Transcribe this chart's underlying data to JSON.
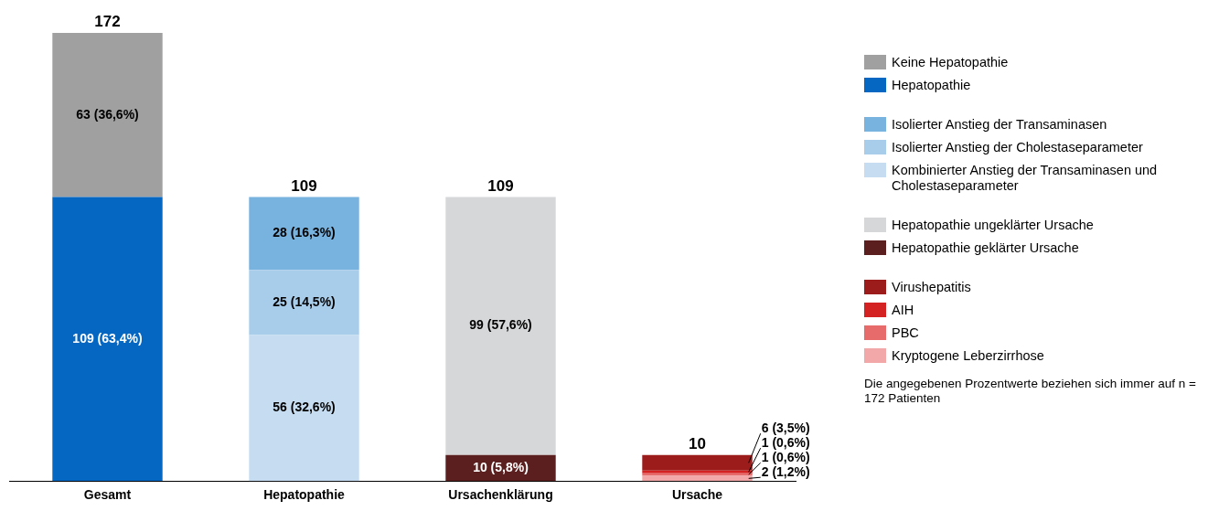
{
  "chart_data": {
    "type": "bar",
    "stacked": true,
    "categories": [
      "Gesamt",
      "Hepatopathie",
      "Ursachenklärung",
      "Ursache"
    ],
    "series": [
      {
        "name": "Hepatopathie",
        "color": "#0567c1",
        "values": [
          109,
          null,
          null,
          null
        ],
        "value_labels": [
          "109 (63,4%)",
          null,
          null,
          null
        ]
      },
      {
        "name": "Keine Hepatopathie",
        "color": "#a0a0a0",
        "values": [
          63,
          null,
          null,
          null
        ],
        "value_labels": [
          "63 (36,6%)",
          null,
          null,
          null
        ]
      },
      {
        "name": "Kombinierter Anstieg der Transaminasen und Cholestaseparameter",
        "color": "#c6ddf1",
        "values": [
          null,
          56,
          null,
          null
        ],
        "value_labels": [
          null,
          "56 (32,6%)",
          null,
          null
        ]
      },
      {
        "name": "Isolierter Anstieg der Cholestaseparameter",
        "color": "#a8cdeb",
        "values": [
          null,
          25,
          null,
          null
        ],
        "value_labels": [
          null,
          "25 (14,5%)",
          null,
          null
        ]
      },
      {
        "name": "Isolierter Anstieg der Transaminasen",
        "color": "#78b2df",
        "values": [
          null,
          28,
          null,
          null
        ],
        "value_labels": [
          null,
          "28 (16,3%)",
          null,
          null
        ]
      },
      {
        "name": "Hepatopathie geklärter Ursache",
        "color": "#5b1f1f",
        "values": [
          null,
          null,
          10,
          null
        ],
        "value_labels": [
          null,
          null,
          "10 (5,8%)",
          null
        ]
      },
      {
        "name": "Hepatopathie ungeklärter Ursache",
        "color": "#d6d7d9",
        "values": [
          null,
          null,
          99,
          null
        ],
        "value_labels": [
          null,
          null,
          "99 (57,6%)",
          null
        ]
      },
      {
        "name": "Kryptogene Leberzirrhose",
        "color": "#f2a8a8",
        "values": [
          null,
          null,
          null,
          2
        ],
        "value_labels": [
          null,
          null,
          null,
          "2 (1,2%)"
        ]
      },
      {
        "name": "PBC",
        "color": "#e86b6b",
        "values": [
          null,
          null,
          null,
          1
        ],
        "value_labels": [
          null,
          null,
          null,
          "1 (0,6%)"
        ]
      },
      {
        "name": "AIH",
        "color": "#d42222",
        "values": [
          null,
          null,
          null,
          1
        ],
        "value_labels": [
          null,
          null,
          null,
          "1 (0,6%)"
        ]
      },
      {
        "name": "Virushepatitis",
        "color": "#9c1b1b",
        "values": [
          null,
          null,
          null,
          6
        ],
        "value_labels": [
          null,
          null,
          null,
          "6 (3,5%)"
        ]
      }
    ],
    "totals": [
      "172",
      "109",
      "109",
      "10"
    ],
    "legend": "right",
    "grid": false,
    "tick_labels": "x",
    "annotations": [
      "Die angegebenen Prozentwerte beziehen sich immer auf n = 172 Patienten"
    ]
  }
}
